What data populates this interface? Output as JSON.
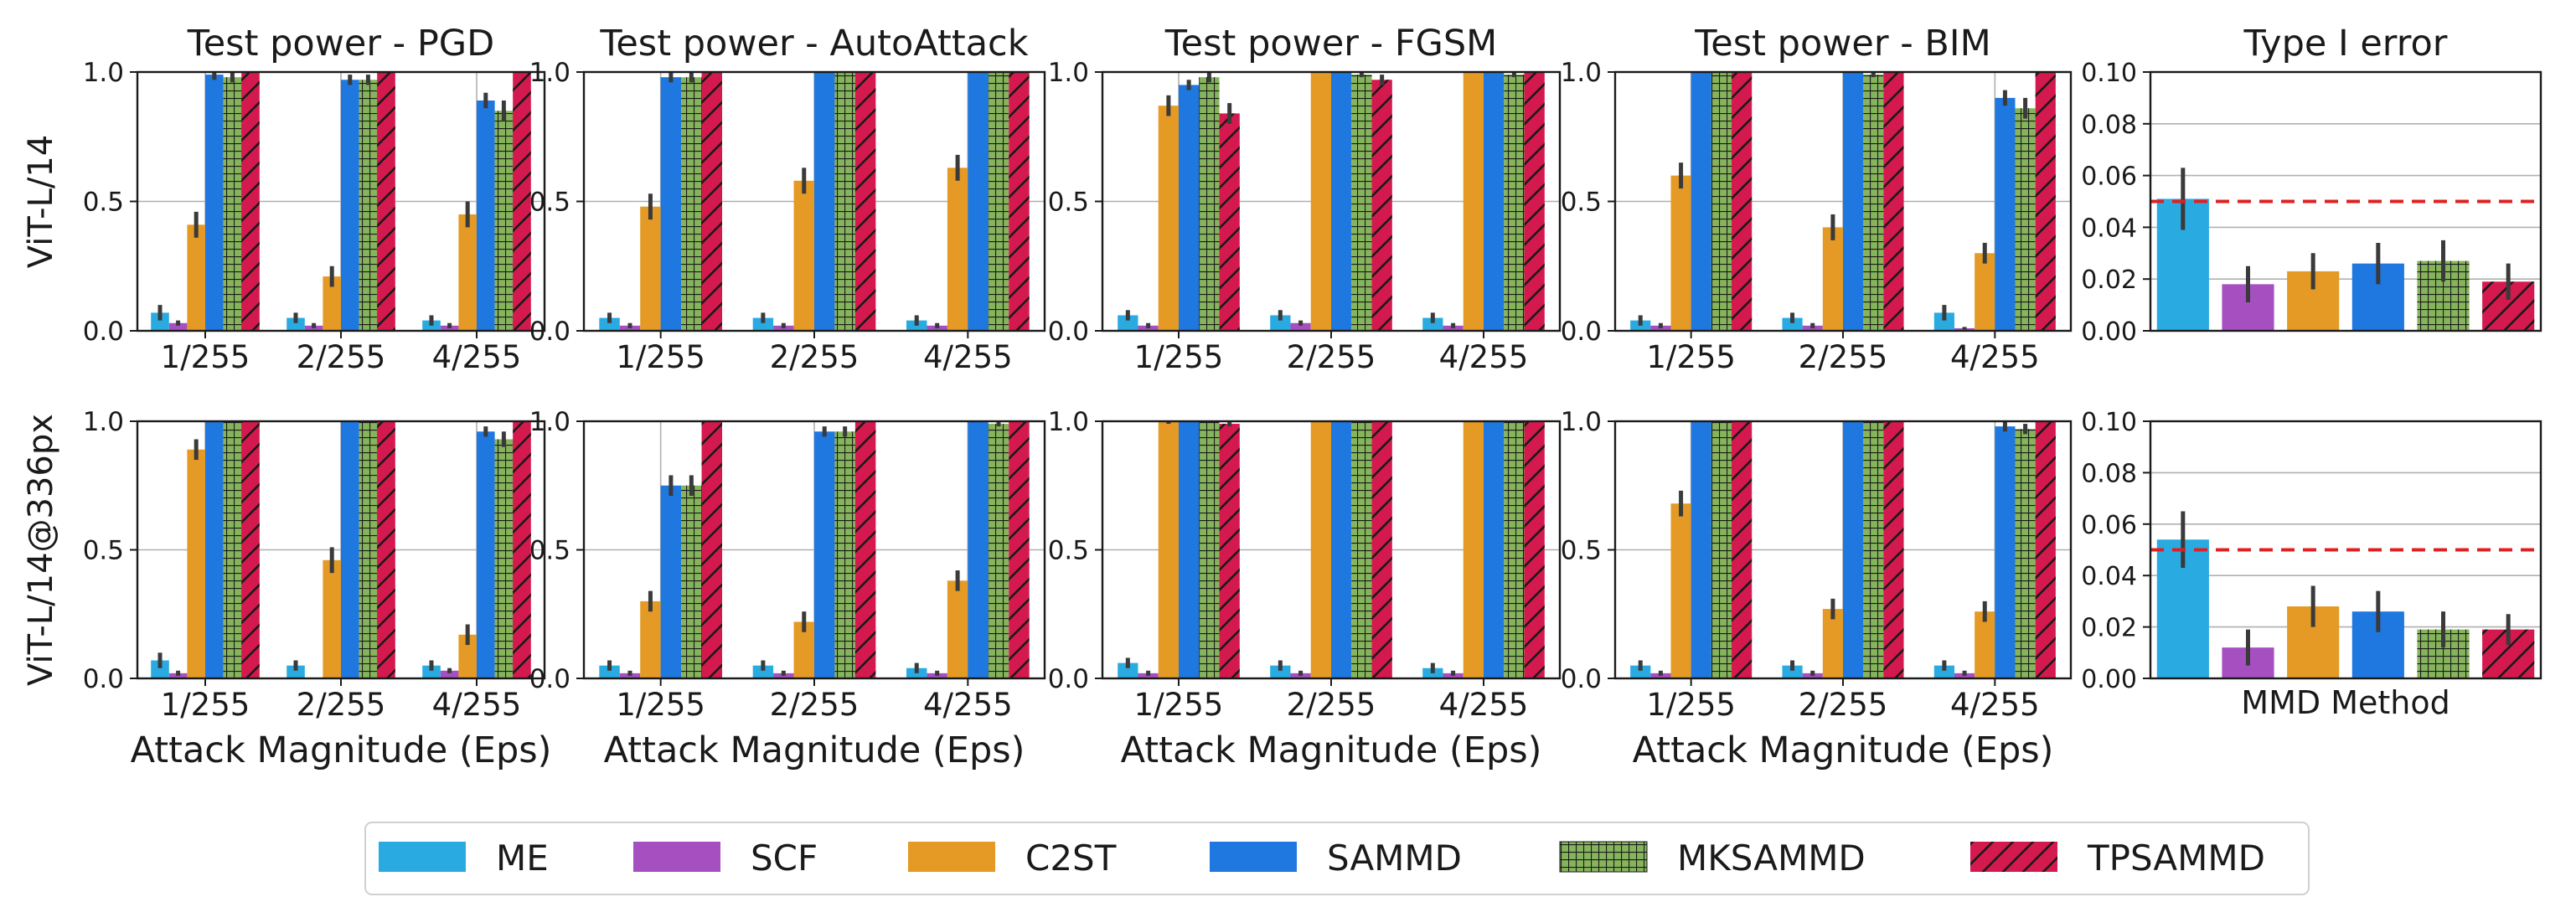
{
  "colors": {
    "ME": "#29abe2",
    "SCF": "#a64fc0",
    "C2ST": "#e49a24",
    "SAMMD": "#1f77e0",
    "MKSAMMD": "#86b45c",
    "TPSAMMD": "#d4194e",
    "reference_line": "#e02020"
  },
  "legend": {
    "entries": [
      {
        "key": "ME",
        "label": "ME",
        "pattern": "none"
      },
      {
        "key": "SCF",
        "label": "SCF",
        "pattern": "none"
      },
      {
        "key": "C2ST",
        "label": "C2ST",
        "pattern": "none"
      },
      {
        "key": "SAMMD",
        "label": "SAMMD",
        "pattern": "none"
      },
      {
        "key": "MKSAMMD",
        "label": "MKSAMMD",
        "pattern": "grid"
      },
      {
        "key": "TPSAMMD",
        "label": "TPSAMMD",
        "pattern": "hatch"
      }
    ]
  },
  "row_labels": [
    "ViT-L/14",
    "ViT-L/14@336px"
  ],
  "chart_data": [
    {
      "type": "bar",
      "row": 0,
      "col": 0,
      "title": "Test power - PGD",
      "xlabel": "",
      "ylabel": "ViT-L/14",
      "categories": [
        "1/255",
        "2/255",
        "4/255"
      ],
      "ylim": [
        0,
        1.0
      ],
      "yticks": [
        "0.0",
        "0.5",
        "1.0"
      ],
      "series": [
        {
          "name": "ME",
          "values": [
            0.07,
            0.05,
            0.04
          ],
          "err": [
            0.03,
            0.02,
            0.02
          ]
        },
        {
          "name": "SCF",
          "values": [
            0.03,
            0.02,
            0.02
          ],
          "err": [
            0.01,
            0.01,
            0.01
          ]
        },
        {
          "name": "C2ST",
          "values": [
            0.41,
            0.21,
            0.45
          ],
          "err": [
            0.05,
            0.04,
            0.05
          ]
        },
        {
          "name": "SAMMD",
          "values": [
            0.99,
            0.97,
            0.89
          ],
          "err": [
            0.02,
            0.02,
            0.03
          ]
        },
        {
          "name": "MKSAMMD",
          "values": [
            0.98,
            0.97,
            0.85
          ],
          "err": [
            0.02,
            0.02,
            0.04
          ]
        },
        {
          "name": "TPSAMMD",
          "values": [
            1.0,
            1.0,
            1.0
          ],
          "err": [
            0,
            0,
            0
          ]
        }
      ]
    },
    {
      "type": "bar",
      "row": 0,
      "col": 1,
      "title": "Test power - AutoAttack",
      "xlabel": "",
      "ylabel": "",
      "categories": [
        "1/255",
        "2/255",
        "4/255"
      ],
      "ylim": [
        0,
        1.0
      ],
      "yticks": [
        "0.0",
        "0.5",
        "1.0"
      ],
      "series": [
        {
          "name": "ME",
          "values": [
            0.05,
            0.05,
            0.04
          ],
          "err": [
            0.02,
            0.02,
            0.02
          ]
        },
        {
          "name": "SCF",
          "values": [
            0.02,
            0.02,
            0.02
          ],
          "err": [
            0.01,
            0.01,
            0.01
          ]
        },
        {
          "name": "C2ST",
          "values": [
            0.48,
            0.58,
            0.63
          ],
          "err": [
            0.05,
            0.05,
            0.05
          ]
        },
        {
          "name": "SAMMD",
          "values": [
            0.98,
            1.0,
            1.0
          ],
          "err": [
            0.02,
            0,
            0
          ]
        },
        {
          "name": "MKSAMMD",
          "values": [
            0.98,
            1.0,
            1.0
          ],
          "err": [
            0.02,
            0,
            0
          ]
        },
        {
          "name": "TPSAMMD",
          "values": [
            1.0,
            1.0,
            1.0
          ],
          "err": [
            0,
            0,
            0
          ]
        }
      ]
    },
    {
      "type": "bar",
      "row": 0,
      "col": 2,
      "title": "Test power - FGSM",
      "xlabel": "",
      "ylabel": "",
      "categories": [
        "1/255",
        "2/255",
        "4/255"
      ],
      "ylim": [
        0,
        1.0
      ],
      "yticks": [
        "0.0",
        "0.5",
        "1.0"
      ],
      "series": [
        {
          "name": "ME",
          "values": [
            0.06,
            0.06,
            0.05
          ],
          "err": [
            0.02,
            0.02,
            0.02
          ]
        },
        {
          "name": "SCF",
          "values": [
            0.02,
            0.03,
            0.02
          ],
          "err": [
            0.01,
            0.01,
            0.01
          ]
        },
        {
          "name": "C2ST",
          "values": [
            0.87,
            1.0,
            1.0
          ],
          "err": [
            0.04,
            0,
            0
          ]
        },
        {
          "name": "SAMMD",
          "values": [
            0.95,
            1.0,
            1.0
          ],
          "err": [
            0.02,
            0,
            0
          ]
        },
        {
          "name": "MKSAMMD",
          "values": [
            0.98,
            0.99,
            0.99
          ],
          "err": [
            0.02,
            0.01,
            0.01
          ]
        },
        {
          "name": "TPSAMMD",
          "values": [
            0.84,
            0.97,
            1.0
          ],
          "err": [
            0.04,
            0.02,
            0
          ]
        }
      ]
    },
    {
      "type": "bar",
      "row": 0,
      "col": 3,
      "title": "Test power - BIM",
      "xlabel": "",
      "ylabel": "",
      "categories": [
        "1/255",
        "2/255",
        "4/255"
      ],
      "ylim": [
        0,
        1.0
      ],
      "yticks": [
        "0.0",
        "0.5",
        "1.0"
      ],
      "series": [
        {
          "name": "ME",
          "values": [
            0.04,
            0.05,
            0.07
          ],
          "err": [
            0.02,
            0.02,
            0.03
          ]
        },
        {
          "name": "SCF",
          "values": [
            0.02,
            0.02,
            0.01
          ],
          "err": [
            0.01,
            0.01,
            0.005
          ]
        },
        {
          "name": "C2ST",
          "values": [
            0.6,
            0.4,
            0.3
          ],
          "err": [
            0.05,
            0.05,
            0.04
          ]
        },
        {
          "name": "SAMMD",
          "values": [
            1.0,
            1.0,
            0.9
          ],
          "err": [
            0,
            0,
            0.03
          ]
        },
        {
          "name": "MKSAMMD",
          "values": [
            1.0,
            0.99,
            0.86
          ],
          "err": [
            0,
            0.01,
            0.04
          ]
        },
        {
          "name": "TPSAMMD",
          "values": [
            1.0,
            1.0,
            1.0
          ],
          "err": [
            0,
            0,
            0
          ]
        }
      ]
    },
    {
      "type": "bar",
      "row": 0,
      "col": 4,
      "title": "Type I error",
      "xlabel": "",
      "ylabel": "",
      "categories": [
        "ME",
        "SCF",
        "C2ST",
        "SAMMD",
        "MKSAMMD",
        "TPSAMMD"
      ],
      "ylim": [
        0,
        0.1
      ],
      "yticks": [
        "0.00",
        "0.02",
        "0.04",
        "0.06",
        "0.08",
        "0.10"
      ],
      "reference_line": 0.05,
      "values": [
        0.051,
        0.018,
        0.023,
        0.026,
        0.027,
        0.019
      ],
      "err": [
        0.012,
        0.007,
        0.007,
        0.008,
        0.008,
        0.007
      ]
    },
    {
      "type": "bar",
      "row": 1,
      "col": 0,
      "title": "",
      "xlabel": "Attack Magnitude (Eps)",
      "ylabel": "ViT-L/14@336px",
      "categories": [
        "1/255",
        "2/255",
        "4/255"
      ],
      "ylim": [
        0,
        1.0
      ],
      "yticks": [
        "0.0",
        "0.5",
        "1.0"
      ],
      "series": [
        {
          "name": "ME",
          "values": [
            0.07,
            0.05,
            0.05
          ],
          "err": [
            0.03,
            0.02,
            0.02
          ]
        },
        {
          "name": "SCF",
          "values": [
            0.02,
            0.0,
            0.03
          ],
          "err": [
            0.01,
            0.0,
            0.01
          ]
        },
        {
          "name": "C2ST",
          "values": [
            0.89,
            0.46,
            0.17
          ],
          "err": [
            0.04,
            0.05,
            0.04
          ]
        },
        {
          "name": "SAMMD",
          "values": [
            1.0,
            1.0,
            0.96
          ],
          "err": [
            0,
            0,
            0.02
          ]
        },
        {
          "name": "MKSAMMD",
          "values": [
            1.0,
            1.0,
            0.93
          ],
          "err": [
            0,
            0,
            0.03
          ]
        },
        {
          "name": "TPSAMMD",
          "values": [
            1.0,
            1.0,
            1.0
          ],
          "err": [
            0,
            0,
            0
          ]
        }
      ]
    },
    {
      "type": "bar",
      "row": 1,
      "col": 1,
      "title": "",
      "xlabel": "Attack Magnitude (Eps)",
      "ylabel": "",
      "categories": [
        "1/255",
        "2/255",
        "4/255"
      ],
      "ylim": [
        0,
        1.0
      ],
      "yticks": [
        "0.0",
        "0.5",
        "1.0"
      ],
      "series": [
        {
          "name": "ME",
          "values": [
            0.05,
            0.05,
            0.04
          ],
          "err": [
            0.02,
            0.02,
            0.02
          ]
        },
        {
          "name": "SCF",
          "values": [
            0.02,
            0.02,
            0.02
          ],
          "err": [
            0.01,
            0.01,
            0.01
          ]
        },
        {
          "name": "C2ST",
          "values": [
            0.3,
            0.22,
            0.38
          ],
          "err": [
            0.04,
            0.04,
            0.04
          ]
        },
        {
          "name": "SAMMD",
          "values": [
            0.75,
            0.96,
            1.0
          ],
          "err": [
            0.04,
            0.02,
            0
          ]
        },
        {
          "name": "MKSAMMD",
          "values": [
            0.75,
            0.96,
            0.99
          ],
          "err": [
            0.04,
            0.02,
            0.01
          ]
        },
        {
          "name": "TPSAMMD",
          "values": [
            1.0,
            1.0,
            1.0
          ],
          "err": [
            0,
            0,
            0
          ]
        }
      ]
    },
    {
      "type": "bar",
      "row": 1,
      "col": 2,
      "title": "",
      "xlabel": "Attack Magnitude (Eps)",
      "ylabel": "",
      "categories": [
        "1/255",
        "2/255",
        "4/255"
      ],
      "ylim": [
        0,
        1.0
      ],
      "yticks": [
        "0.0",
        "0.5",
        "1.0"
      ],
      "series": [
        {
          "name": "ME",
          "values": [
            0.06,
            0.05,
            0.04
          ],
          "err": [
            0.02,
            0.02,
            0.02
          ]
        },
        {
          "name": "SCF",
          "values": [
            0.02,
            0.02,
            0.02
          ],
          "err": [
            0.01,
            0.01,
            0.01
          ]
        },
        {
          "name": "C2ST",
          "values": [
            1.0,
            1.0,
            1.0
          ],
          "err": [
            0.01,
            0,
            0
          ]
        },
        {
          "name": "SAMMD",
          "values": [
            1.0,
            1.0,
            1.0
          ],
          "err": [
            0,
            0,
            0
          ]
        },
        {
          "name": "MKSAMMD",
          "values": [
            1.0,
            1.0,
            1.0
          ],
          "err": [
            0,
            0,
            0
          ]
        },
        {
          "name": "TPSAMMD",
          "values": [
            0.99,
            1.0,
            1.0
          ],
          "err": [
            0.01,
            0,
            0
          ]
        }
      ]
    },
    {
      "type": "bar",
      "row": 1,
      "col": 3,
      "title": "",
      "xlabel": "Attack Magnitude (Eps)",
      "ylabel": "",
      "categories": [
        "1/255",
        "2/255",
        "4/255"
      ],
      "ylim": [
        0,
        1.0
      ],
      "yticks": [
        "0.0",
        "0.5",
        "1.0"
      ],
      "series": [
        {
          "name": "ME",
          "values": [
            0.05,
            0.05,
            0.05
          ],
          "err": [
            0.02,
            0.02,
            0.02
          ]
        },
        {
          "name": "SCF",
          "values": [
            0.02,
            0.02,
            0.02
          ],
          "err": [
            0.01,
            0.01,
            0.01
          ]
        },
        {
          "name": "C2ST",
          "values": [
            0.68,
            0.27,
            0.26
          ],
          "err": [
            0.05,
            0.04,
            0.04
          ]
        },
        {
          "name": "SAMMD",
          "values": [
            1.0,
            1.0,
            0.98
          ],
          "err": [
            0,
            0,
            0.02
          ]
        },
        {
          "name": "MKSAMMD",
          "values": [
            1.0,
            1.0,
            0.97
          ],
          "err": [
            0,
            0,
            0.02
          ]
        },
        {
          "name": "TPSAMMD",
          "values": [
            1.0,
            1.0,
            1.0
          ],
          "err": [
            0,
            0,
            0
          ]
        }
      ]
    },
    {
      "type": "bar",
      "row": 1,
      "col": 4,
      "title": "",
      "xlabel": "MMD Method",
      "ylabel": "",
      "categories": [
        "ME",
        "SCF",
        "C2ST",
        "SAMMD",
        "MKSAMMD",
        "TPSAMMD"
      ],
      "ylim": [
        0,
        0.1
      ],
      "yticks": [
        "0.00",
        "0.02",
        "0.04",
        "0.06",
        "0.08",
        "0.10"
      ],
      "reference_line": 0.05,
      "values": [
        0.054,
        0.012,
        0.028,
        0.026,
        0.019,
        0.019
      ],
      "err": [
        0.011,
        0.007,
        0.008,
        0.008,
        0.007,
        0.006
      ]
    }
  ]
}
